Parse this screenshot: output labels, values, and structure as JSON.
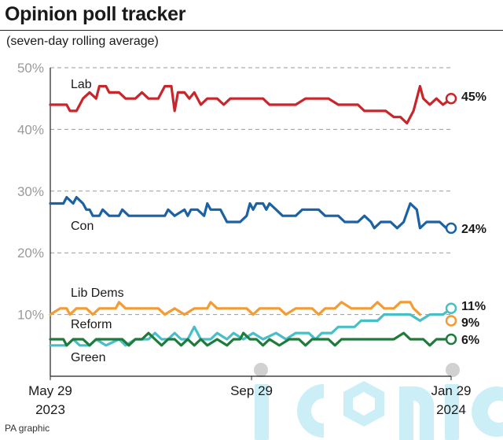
{
  "header": {
    "title": "Opinion poll tracker",
    "subtitle": "(seven-day rolling average)"
  },
  "footer": {
    "credit": "PA graphic"
  },
  "watermark": {
    "text": "iconic"
  },
  "chart_data": {
    "type": "line",
    "title": "Opinion poll tracker",
    "subtitle": "(seven-day rolling average)",
    "ylim": [
      0,
      50
    ],
    "yticks": [
      {
        "value": 10,
        "label": "10%"
      },
      {
        "value": 20,
        "label": "20%"
      },
      {
        "value": 30,
        "label": "30%"
      },
      {
        "value": 40,
        "label": "40%"
      },
      {
        "value": 50,
        "label": "50%"
      }
    ],
    "xlim": [
      0,
      245
    ],
    "xticks": [
      {
        "value": 0,
        "line1": "May 29",
        "line2": "2023"
      },
      {
        "value": 123,
        "line1": "Sep 29",
        "line2": ""
      },
      {
        "value": 245,
        "line1": "Jan 29",
        "line2": "2024"
      }
    ],
    "grid": "horizontal dashed",
    "x_unit": "days since May 29 2023",
    "series": [
      {
        "name": "Lab",
        "color": "#c8262b",
        "end_label": "45%",
        "points": [
          [
            0,
            44
          ],
          [
            10,
            44
          ],
          [
            12,
            43
          ],
          [
            16,
            43
          ],
          [
            18,
            44
          ],
          [
            20,
            45
          ],
          [
            24,
            46
          ],
          [
            28,
            45
          ],
          [
            30,
            47
          ],
          [
            34,
            47
          ],
          [
            36,
            46
          ],
          [
            42,
            46
          ],
          [
            46,
            45
          ],
          [
            52,
            45
          ],
          [
            56,
            46
          ],
          [
            60,
            45
          ],
          [
            66,
            45
          ],
          [
            70,
            47
          ],
          [
            74,
            47
          ],
          [
            76,
            43
          ],
          [
            78,
            46
          ],
          [
            82,
            46
          ],
          [
            85,
            45
          ],
          [
            88,
            46
          ],
          [
            92,
            44
          ],
          [
            96,
            45
          ],
          [
            102,
            45
          ],
          [
            106,
            44
          ],
          [
            110,
            45
          ],
          [
            116,
            45
          ],
          [
            120,
            45
          ],
          [
            130,
            45
          ],
          [
            134,
            44
          ],
          [
            150,
            44
          ],
          [
            156,
            45
          ],
          [
            170,
            45
          ],
          [
            176,
            44
          ],
          [
            188,
            44
          ],
          [
            192,
            43
          ],
          [
            205,
            43
          ],
          [
            210,
            42
          ],
          [
            214,
            42
          ],
          [
            218,
            41
          ],
          [
            222,
            43
          ],
          [
            224,
            45
          ],
          [
            226,
            47
          ],
          [
            228,
            45
          ],
          [
            232,
            44
          ],
          [
            236,
            45
          ],
          [
            240,
            44
          ],
          [
            245,
            45
          ]
        ]
      },
      {
        "name": "Con",
        "color": "#1b62a5",
        "end_label": "24%",
        "points": [
          [
            0,
            28
          ],
          [
            8,
            28
          ],
          [
            10,
            29
          ],
          [
            14,
            28
          ],
          [
            16,
            29
          ],
          [
            20,
            28
          ],
          [
            22,
            27
          ],
          [
            24,
            27
          ],
          [
            26,
            26
          ],
          [
            30,
            26
          ],
          [
            32,
            27
          ],
          [
            36,
            26
          ],
          [
            42,
            26
          ],
          [
            44,
            27
          ],
          [
            48,
            26
          ],
          [
            70,
            26
          ],
          [
            72,
            27
          ],
          [
            76,
            26
          ],
          [
            82,
            27
          ],
          [
            84,
            26
          ],
          [
            86,
            27
          ],
          [
            90,
            27
          ],
          [
            94,
            26
          ],
          [
            96,
            28
          ],
          [
            98,
            27
          ],
          [
            104,
            27
          ],
          [
            108,
            25
          ],
          [
            116,
            25
          ],
          [
            120,
            26
          ],
          [
            122,
            28
          ],
          [
            124,
            27
          ],
          [
            126,
            28
          ],
          [
            130,
            28
          ],
          [
            132,
            27
          ],
          [
            134,
            28
          ],
          [
            138,
            27
          ],
          [
            142,
            26
          ],
          [
            150,
            26
          ],
          [
            154,
            27
          ],
          [
            164,
            27
          ],
          [
            168,
            26
          ],
          [
            176,
            26
          ],
          [
            180,
            25
          ],
          [
            188,
            25
          ],
          [
            192,
            26
          ],
          [
            196,
            25
          ],
          [
            198,
            24
          ],
          [
            202,
            25
          ],
          [
            208,
            25
          ],
          [
            212,
            24
          ],
          [
            216,
            25
          ],
          [
            220,
            28
          ],
          [
            224,
            27
          ],
          [
            226,
            24
          ],
          [
            230,
            25
          ],
          [
            238,
            25
          ],
          [
            242,
            24
          ],
          [
            245,
            24
          ]
        ]
      },
      {
        "name": "Lib Dems",
        "color": "#f39c34",
        "end_label": "",
        "points": [
          [
            0,
            10
          ],
          [
            6,
            11
          ],
          [
            10,
            11
          ],
          [
            12,
            10
          ],
          [
            16,
            11
          ],
          [
            22,
            11
          ],
          [
            26,
            10
          ],
          [
            30,
            11
          ],
          [
            40,
            11
          ],
          [
            42,
            12
          ],
          [
            46,
            11
          ],
          [
            66,
            11
          ],
          [
            70,
            10
          ],
          [
            76,
            11
          ],
          [
            82,
            10
          ],
          [
            88,
            11
          ],
          [
            96,
            11
          ],
          [
            98,
            12
          ],
          [
            102,
            11
          ],
          [
            120,
            11
          ],
          [
            124,
            10
          ],
          [
            128,
            11
          ],
          [
            140,
            11
          ],
          [
            144,
            10
          ],
          [
            150,
            11
          ],
          [
            160,
            11
          ],
          [
            164,
            10
          ],
          [
            168,
            11
          ],
          [
            174,
            11
          ],
          [
            178,
            12
          ],
          [
            184,
            11
          ],
          [
            196,
            11
          ],
          [
            200,
            12
          ],
          [
            204,
            11
          ],
          [
            210,
            11
          ],
          [
            214,
            12
          ],
          [
            220,
            12
          ],
          [
            222,
            11
          ],
          [
            226,
            10
          ]
        ]
      },
      {
        "name": "Reform",
        "color": "#48bfc6",
        "end_label": "11%",
        "points": [
          [
            0,
            5
          ],
          [
            10,
            5
          ],
          [
            14,
            6
          ],
          [
            18,
            5
          ],
          [
            24,
            5
          ],
          [
            28,
            6
          ],
          [
            34,
            5
          ],
          [
            42,
            6
          ],
          [
            46,
            5
          ],
          [
            52,
            6
          ],
          [
            60,
            6
          ],
          [
            64,
            7
          ],
          [
            68,
            6
          ],
          [
            72,
            6
          ],
          [
            76,
            7
          ],
          [
            80,
            6
          ],
          [
            84,
            6
          ],
          [
            88,
            8
          ],
          [
            92,
            6
          ],
          [
            98,
            6
          ],
          [
            102,
            7
          ],
          [
            108,
            6
          ],
          [
            112,
            7
          ],
          [
            118,
            6
          ],
          [
            124,
            7
          ],
          [
            130,
            6
          ],
          [
            138,
            7
          ],
          [
            144,
            6
          ],
          [
            150,
            7
          ],
          [
            158,
            7
          ],
          [
            162,
            6
          ],
          [
            166,
            7
          ],
          [
            172,
            7
          ],
          [
            176,
            8
          ],
          [
            186,
            8
          ],
          [
            190,
            9
          ],
          [
            200,
            9
          ],
          [
            204,
            10
          ],
          [
            214,
            10
          ],
          [
            220,
            10
          ],
          [
            226,
            9
          ],
          [
            232,
            10
          ],
          [
            240,
            10
          ],
          [
            245,
            11
          ]
        ]
      },
      {
        "name": "Green",
        "color": "#1e7b3b",
        "end_label": "6%",
        "points": [
          [
            0,
            6
          ],
          [
            8,
            6
          ],
          [
            10,
            5
          ],
          [
            14,
            6
          ],
          [
            20,
            6
          ],
          [
            24,
            5
          ],
          [
            28,
            6
          ],
          [
            44,
            6
          ],
          [
            48,
            5
          ],
          [
            52,
            6
          ],
          [
            56,
            6
          ],
          [
            60,
            7
          ],
          [
            64,
            6
          ],
          [
            68,
            5
          ],
          [
            72,
            6
          ],
          [
            76,
            6
          ],
          [
            80,
            5
          ],
          [
            84,
            6
          ],
          [
            88,
            5
          ],
          [
            92,
            6
          ],
          [
            96,
            5
          ],
          [
            102,
            6
          ],
          [
            108,
            5
          ],
          [
            112,
            6
          ],
          [
            116,
            6
          ],
          [
            118,
            7
          ],
          [
            122,
            6
          ],
          [
            126,
            6
          ],
          [
            130,
            5
          ],
          [
            134,
            6
          ],
          [
            140,
            5
          ],
          [
            146,
            6
          ],
          [
            152,
            6
          ],
          [
            156,
            5
          ],
          [
            160,
            6
          ],
          [
            170,
            6
          ],
          [
            174,
            5
          ],
          [
            178,
            6
          ],
          [
            200,
            6
          ],
          [
            210,
            6
          ],
          [
            216,
            7
          ],
          [
            220,
            6
          ],
          [
            228,
            6
          ],
          [
            232,
            5
          ],
          [
            236,
            6
          ],
          [
            245,
            6
          ]
        ]
      }
    ]
  }
}
